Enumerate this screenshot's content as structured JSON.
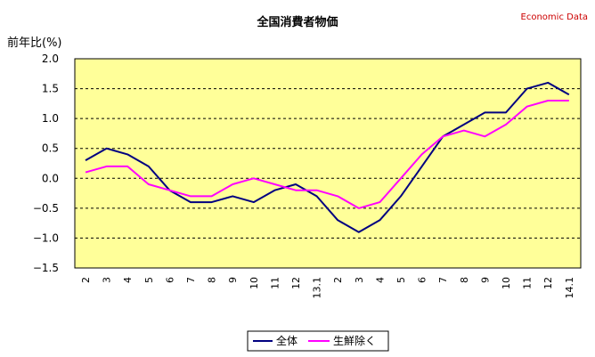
{
  "chart_data": {
    "type": "line",
    "title": "全国消費者物価",
    "source_label": "Economic Data",
    "ylabel": "前年比(%)",
    "ylim": [
      -1.5,
      2.0
    ],
    "ytick_values": [
      2.0,
      1.5,
      1.0,
      0.5,
      0.0,
      -0.5,
      -1.0,
      -1.5
    ],
    "ytick_labels": [
      "2.0",
      "1.5",
      "1.0",
      "0.5",
      "0.0",
      "−0.5",
      "−1.0",
      "−1.5"
    ],
    "x": [
      "2",
      "3",
      "4",
      "5",
      "6",
      "7",
      "8",
      "9",
      "10",
      "11",
      "12",
      "13.1",
      "2",
      "3",
      "4",
      "5",
      "6",
      "7",
      "8",
      "9",
      "10",
      "11",
      "12",
      "14.1"
    ],
    "grid": "horizontal-dashed",
    "legend_position": "bottom",
    "series": [
      {
        "name": "全体",
        "color": "#000080",
        "values": [
          0.3,
          0.5,
          0.4,
          0.2,
          -0.2,
          -0.4,
          -0.4,
          -0.3,
          -0.4,
          -0.2,
          -0.1,
          -0.3,
          -0.7,
          -0.9,
          -0.7,
          -0.3,
          0.2,
          0.7,
          0.9,
          1.1,
          1.1,
          1.5,
          1.6,
          1.4
        ]
      },
      {
        "name": "生鮮除く",
        "color": "#ff00ff",
        "values": [
          0.1,
          0.2,
          0.2,
          -0.1,
          -0.2,
          -0.3,
          -0.3,
          -0.1,
          0.0,
          -0.1,
          -0.2,
          -0.2,
          -0.3,
          -0.5,
          -0.4,
          0.0,
          0.4,
          0.7,
          0.8,
          0.7,
          0.9,
          1.2,
          1.3,
          1.3
        ]
      }
    ],
    "plot_background": "#ffff99"
  }
}
